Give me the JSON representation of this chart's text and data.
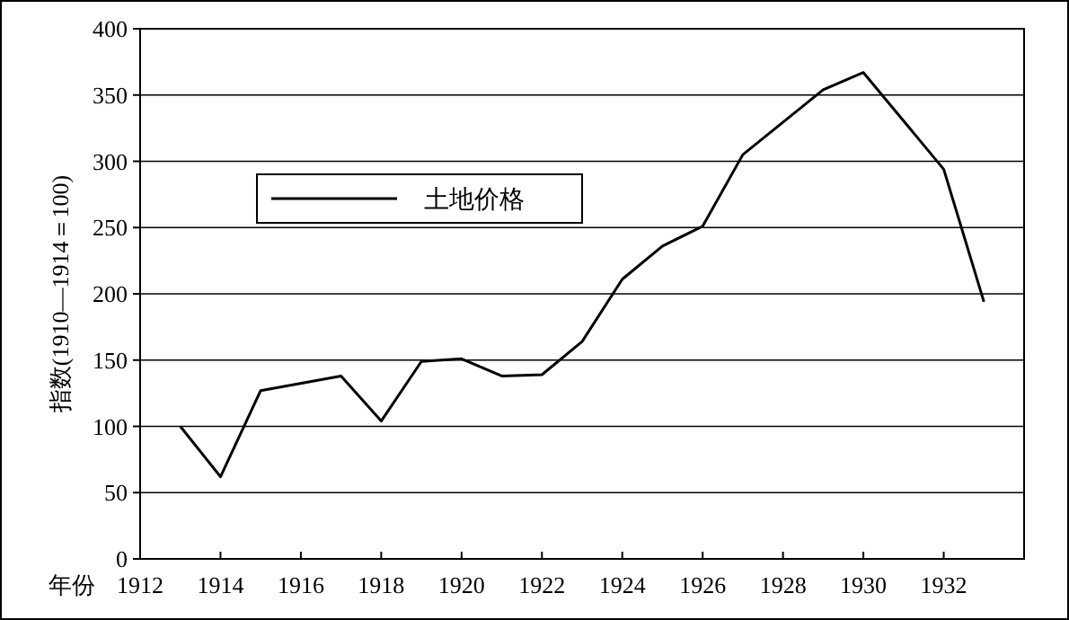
{
  "chart_data": {
    "type": "line",
    "xlabel": "年份",
    "ylabel": "指数(1910—1914＝100)",
    "x": [
      1913,
      1914,
      1915,
      1917,
      1918,
      1919,
      1920,
      1921,
      1922,
      1923,
      1924,
      1925,
      1926,
      1927,
      1929,
      1930,
      1932,
      1933
    ],
    "series": [
      {
        "name": "土地价格",
        "color": "#000000",
        "values": [
          100,
          62,
          127,
          138,
          104,
          149,
          151,
          138,
          139,
          164,
          211,
          236,
          251,
          305,
          354,
          367,
          294,
          194
        ]
      }
    ],
    "xlim": [
      1912,
      1934
    ],
    "xticks": [
      1912,
      1914,
      1916,
      1918,
      1920,
      1922,
      1924,
      1926,
      1928,
      1930,
      1932
    ],
    "ylim": [
      0,
      400
    ],
    "yticks": [
      0,
      50,
      100,
      150,
      200,
      250,
      300,
      350,
      400
    ],
    "grid": "y",
    "legend": "top left",
    "marker": "none",
    "line_style": "solid"
  }
}
